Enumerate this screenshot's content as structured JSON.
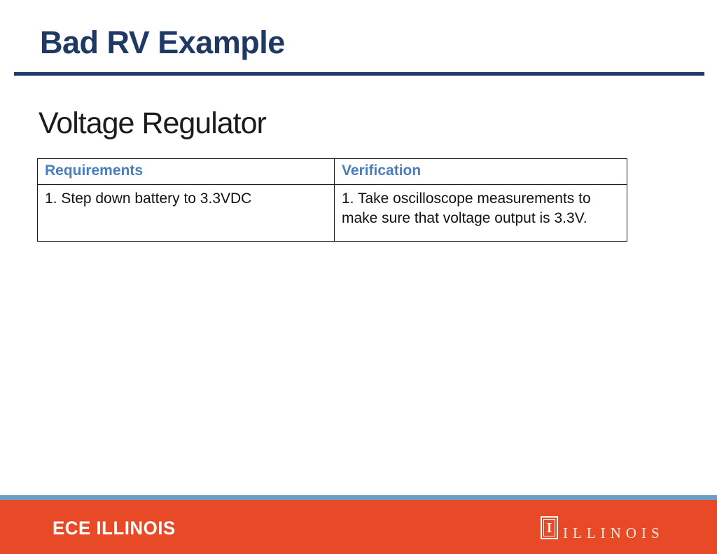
{
  "slide": {
    "title": "Bad RV Example",
    "subtitle": "Voltage Regulator",
    "table": {
      "columns": [
        "Requirements",
        "Verification"
      ],
      "rows": [
        [
          "1. Step down battery to 3.3VDC",
          "1. Take oscilloscope measurements to make sure that voltage output is 3.3V."
        ]
      ]
    },
    "footer": {
      "left_wordmark": "ECE ILLINOIS",
      "logo_glyph": "I",
      "right_wordmark": "ILLINOIS"
    },
    "colors": {
      "title_navy": "#1F3864",
      "table_header_blue": "#4A7EBB",
      "footer_orange": "#E84A27",
      "footer_strip_blue": "#6D9DC5",
      "footer_cream": "#F3EADB"
    }
  }
}
